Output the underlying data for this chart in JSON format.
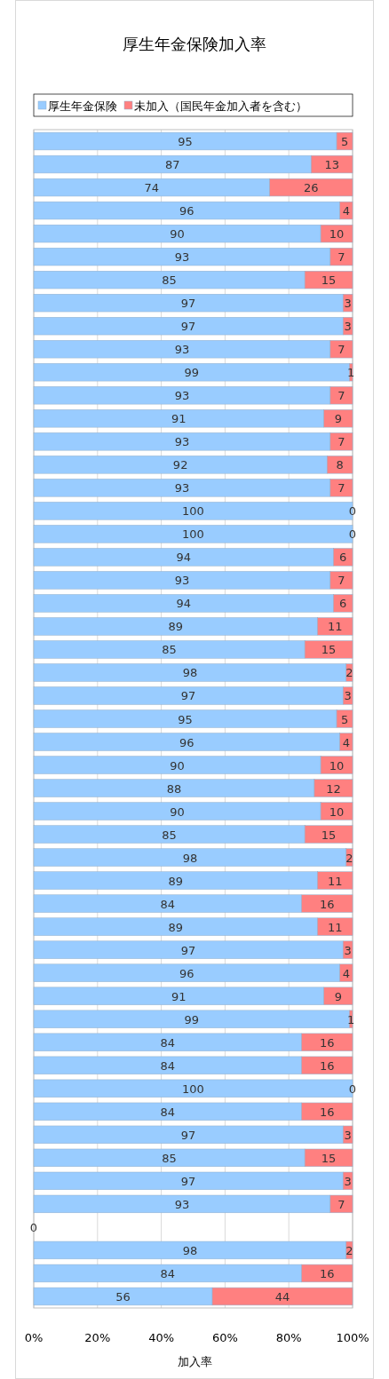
{
  "chart_data": {
    "type": "bar",
    "orientation": "horizontal",
    "stacked": true,
    "title": "厚生年金保険加入率",
    "xlabel": "加入率",
    "categories": [
      null,
      null,
      null,
      null,
      null,
      null,
      null,
      null,
      null,
      null,
      null,
      null,
      null,
      null,
      null,
      null,
      null,
      null,
      null,
      null,
      null,
      null,
      null,
      null,
      null,
      null,
      null,
      null,
      null,
      null,
      null,
      null,
      null,
      null,
      null,
      null,
      null,
      null,
      null,
      null,
      null,
      null,
      null,
      null,
      null,
      null,
      null,
      null,
      null,
      null,
      null
    ],
    "series": [
      {
        "name": "厚生年金保険",
        "color": "#99ccff",
        "values": [
          95,
          87,
          74,
          96,
          90,
          93,
          85,
          97,
          97,
          93,
          99,
          93,
          91,
          93,
          92,
          93,
          100,
          100,
          94,
          93,
          94,
          89,
          85,
          98,
          97,
          95,
          96,
          90,
          88,
          90,
          85,
          98,
          89,
          84,
          89,
          97,
          96,
          91,
          99,
          84,
          84,
          100,
          84,
          97,
          85,
          97,
          93,
          0,
          98,
          84,
          56
        ]
      },
      {
        "name": "未加入（国民年金加入者を含む）",
        "color": "#ff8080",
        "values": [
          5,
          13,
          26,
          4,
          10,
          7,
          15,
          3,
          3,
          7,
          1,
          7,
          9,
          7,
          8,
          7,
          0,
          0,
          6,
          7,
          6,
          11,
          15,
          2,
          3,
          5,
          4,
          10,
          12,
          10,
          15,
          2,
          11,
          16,
          11,
          3,
          4,
          9,
          1,
          16,
          16,
          0,
          16,
          3,
          15,
          3,
          7,
          null,
          2,
          16,
          44
        ]
      }
    ],
    "xlim": [
      0,
      100
    ],
    "xticks": [
      {
        "value": 0,
        "label": "0%"
      },
      {
        "value": 20,
        "label": "20%"
      },
      {
        "value": 40,
        "label": "40%"
      },
      {
        "value": 60,
        "label": "60%"
      },
      {
        "value": 80,
        "label": "80%"
      },
      {
        "value": 100,
        "label": "100%"
      }
    ],
    "grid": "x",
    "legend": "top",
    "data_labels": true
  }
}
